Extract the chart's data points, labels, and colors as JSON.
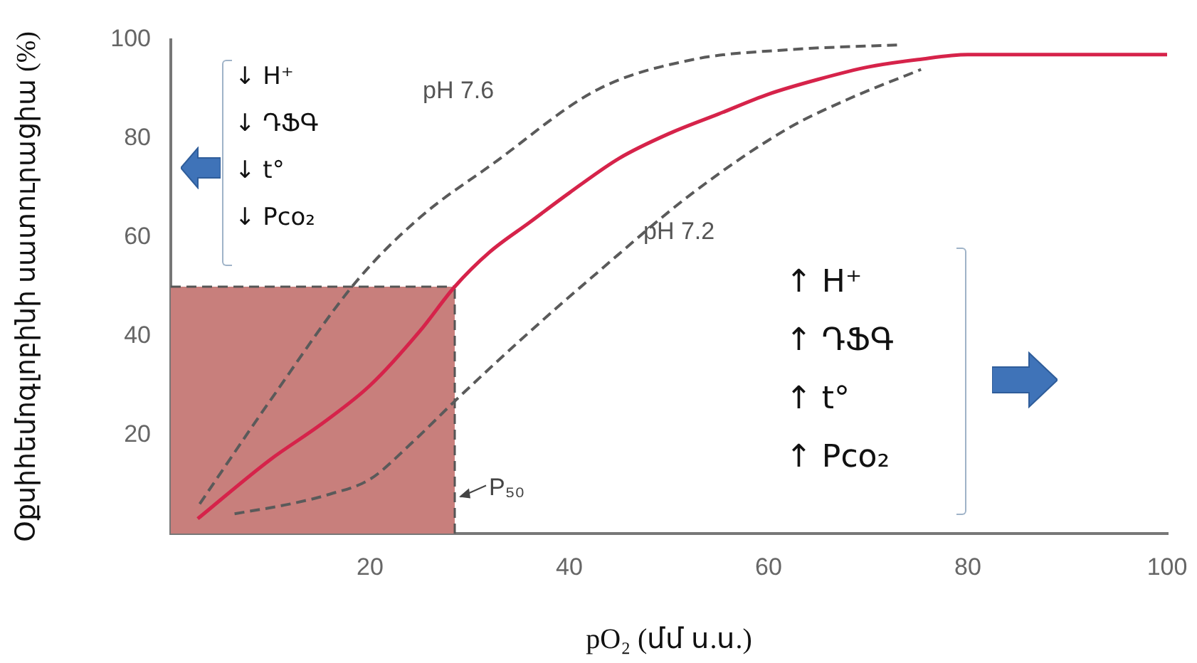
{
  "chart_data": {
    "type": "line",
    "xlabel": "pO₂ (մմ ս.ս.)",
    "ylabel": "Օքսիհեմոգլոբինի սատուրացիա (%)",
    "xlim": [
      0,
      100
    ],
    "xticks": [
      20,
      40,
      60,
      80,
      100
    ],
    "ylim": [
      0,
      100
    ],
    "yticks": [
      20,
      40,
      60,
      80,
      100
    ],
    "grid": false,
    "legend": false,
    "marker": "none",
    "series": [
      {
        "color": "#d6234a",
        "x": [
          2.7,
          10,
          15,
          20,
          25,
          28.5,
          32,
          36,
          40,
          45,
          50,
          55,
          60,
          65,
          70,
          75,
          80,
          90,
          100
        ],
        "values": [
          3,
          15,
          22,
          30,
          41,
          50,
          57,
          63,
          69,
          76,
          81,
          85,
          89,
          92,
          94.5,
          96,
          97,
          97,
          97
        ]
      },
      {
        "color": "#5a5a5a",
        "line_style": "dashed",
        "x": [
          2.9,
          10,
          18.6,
          25,
          32.4,
          42.9,
          52.4,
          62,
          73.3
        ],
        "values": [
          6,
          27,
          51,
          64,
          75,
          90,
          96,
          98,
          99
        ]
      },
      {
        "color": "#5a5a5a",
        "line_style": "dashed",
        "x": [
          6.4,
          12,
          16,
          20,
          24,
          28.6,
          35,
          42.9,
          52.4,
          61.9,
          68,
          75.3
        ],
        "values": [
          4,
          6,
          8,
          11,
          18,
          27,
          39,
          53,
          69,
          82,
          88,
          94
        ]
      }
    ],
    "bands": [
      {
        "axis": "x",
        "from": 0,
        "to": 28.5,
        "color": "#c87f7c"
      }
    ],
    "ref_lines": [
      {
        "axis": "y",
        "value": 50,
        "line_style": "dashed"
      },
      {
        "axis": "x",
        "value": 28.5,
        "label": "P₅₀",
        "line_style": "dashed"
      }
    ],
    "annotations": [
      "pH 7.6",
      "pH 7.2",
      "↓ H⁺",
      "↓ ԴՖԳ",
      "↓ t°",
      "↓ Pco₂",
      "↑ H⁺",
      "↑ ԴՖԳ",
      "↑ t°",
      "↑ Pco₂"
    ]
  }
}
